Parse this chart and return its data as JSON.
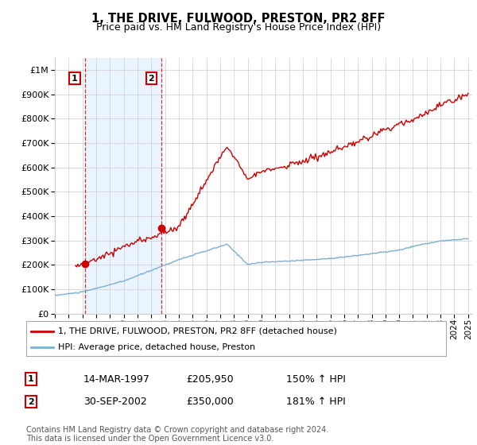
{
  "title": "1, THE DRIVE, FULWOOD, PRESTON, PR2 8FF",
  "subtitle": "Price paid vs. HM Land Registry's House Price Index (HPI)",
  "legend_line1": "1, THE DRIVE, FULWOOD, PRESTON, PR2 8FF (detached house)",
  "legend_line2": "HPI: Average price, detached house, Preston",
  "transaction1_date": "14-MAR-1997",
  "transaction1_price": "£205,950",
  "transaction1_hpi": "150% ↑ HPI",
  "transaction2_date": "30-SEP-2002",
  "transaction2_price": "£350,000",
  "transaction2_hpi": "181% ↑ HPI",
  "footer": "Contains HM Land Registry data © Crown copyright and database right 2024.\nThis data is licensed under the Open Government Licence v3.0.",
  "hpi_color": "#7BAFD4",
  "price_color": "#cc0000",
  "shade_color": "#ddeeff",
  "vline_color": "#cc0000",
  "grid_color": "#cccccc",
  "background_color": "#ffffff",
  "t1_year": 1997.2,
  "t1_price": 205950,
  "t2_year": 2002.75,
  "t2_price": 350000
}
